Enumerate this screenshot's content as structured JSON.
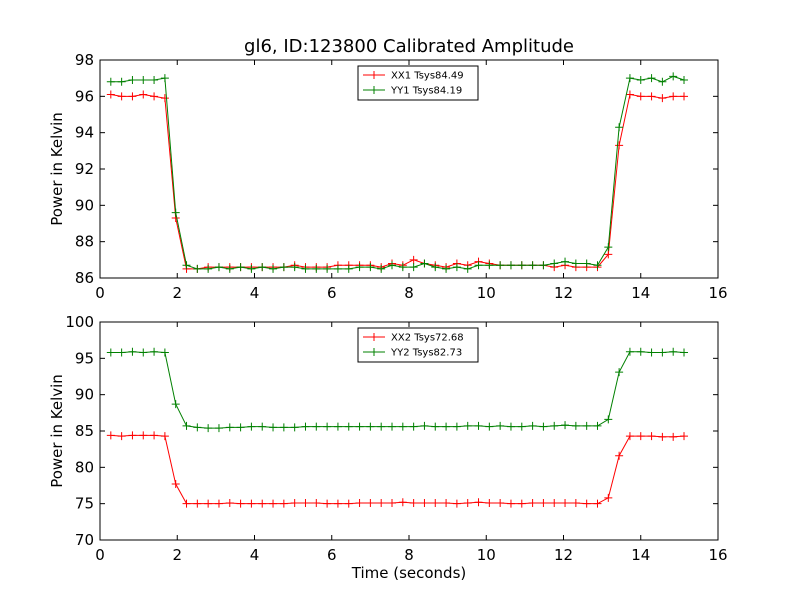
{
  "title": "gl6, ID:123800 Calibrated Amplitude",
  "chart_data": [
    {
      "type": "line",
      "title": "gl6, ID:123800 Calibrated Amplitude",
      "xlabel": "",
      "ylabel": "Power in Kelvin",
      "xlim": [
        0,
        16
      ],
      "ylim": [
        86,
        98
      ],
      "xticks": [
        0,
        2,
        4,
        6,
        8,
        10,
        12,
        14,
        16
      ],
      "yticks": [
        86,
        88,
        90,
        92,
        94,
        96,
        98
      ],
      "grid": false,
      "legend": "top-center",
      "x": [
        0.28,
        0.56,
        0.84,
        1.12,
        1.4,
        1.68,
        1.96,
        2.24,
        2.52,
        2.8,
        3.08,
        3.36,
        3.64,
        3.92,
        4.2,
        4.48,
        4.76,
        5.04,
        5.32,
        5.6,
        5.88,
        6.16,
        6.44,
        6.72,
        7.0,
        7.28,
        7.56,
        7.84,
        8.12,
        8.4,
        8.68,
        8.96,
        9.24,
        9.52,
        9.8,
        10.08,
        10.36,
        10.64,
        10.92,
        11.2,
        11.48,
        11.76,
        12.04,
        12.32,
        12.6,
        12.88,
        13.16,
        13.44,
        13.72,
        14.0,
        14.28,
        14.56,
        14.84,
        15.12
      ],
      "series": [
        {
          "name": "XX1 Tsys84.49",
          "color": "#ff0000",
          "values": [
            96.1,
            96.0,
            96.0,
            96.1,
            96.0,
            95.9,
            89.3,
            86.5,
            86.5,
            86.6,
            86.6,
            86.6,
            86.6,
            86.6,
            86.6,
            86.6,
            86.6,
            86.7,
            86.6,
            86.6,
            86.6,
            86.7,
            86.7,
            86.7,
            86.7,
            86.6,
            86.8,
            86.7,
            87.0,
            86.8,
            86.7,
            86.6,
            86.8,
            86.7,
            86.9,
            86.8,
            86.7,
            86.7,
            86.7,
            86.7,
            86.7,
            86.6,
            86.7,
            86.6,
            86.6,
            86.6,
            87.3,
            93.3,
            96.1,
            96.0,
            96.0,
            95.9,
            96.0,
            96.0
          ]
        },
        {
          "name": "YY1 Tsys84.19",
          "color": "#008000",
          "values": [
            96.8,
            96.8,
            96.9,
            96.9,
            96.9,
            97.0,
            89.6,
            86.7,
            86.5,
            86.5,
            86.6,
            86.5,
            86.6,
            86.5,
            86.6,
            86.5,
            86.6,
            86.6,
            86.5,
            86.5,
            86.5,
            86.5,
            86.5,
            86.6,
            86.6,
            86.5,
            86.7,
            86.6,
            86.6,
            86.8,
            86.6,
            86.5,
            86.6,
            86.5,
            86.7,
            86.7,
            86.7,
            86.7,
            86.7,
            86.7,
            86.7,
            86.8,
            86.9,
            86.8,
            86.8,
            86.7,
            87.7,
            94.3,
            97.0,
            96.9,
            97.0,
            96.8,
            97.1,
            96.9
          ]
        }
      ]
    },
    {
      "type": "line",
      "title": "",
      "xlabel": "Time (seconds)",
      "ylabel": "Power in Kelvin",
      "xlim": [
        0,
        16
      ],
      "ylim": [
        70,
        100
      ],
      "xticks": [
        0,
        2,
        4,
        6,
        8,
        10,
        12,
        14,
        16
      ],
      "yticks": [
        70,
        75,
        80,
        85,
        90,
        95,
        100
      ],
      "grid": false,
      "legend": "top-center",
      "x": [
        0.28,
        0.56,
        0.84,
        1.12,
        1.4,
        1.68,
        1.96,
        2.24,
        2.52,
        2.8,
        3.08,
        3.36,
        3.64,
        3.92,
        4.2,
        4.48,
        4.76,
        5.04,
        5.32,
        5.6,
        5.88,
        6.16,
        6.44,
        6.72,
        7.0,
        7.28,
        7.56,
        7.84,
        8.12,
        8.4,
        8.68,
        8.96,
        9.24,
        9.52,
        9.8,
        10.08,
        10.36,
        10.64,
        10.92,
        11.2,
        11.48,
        11.76,
        12.04,
        12.32,
        12.6,
        12.88,
        13.16,
        13.44,
        13.72,
        14.0,
        14.28,
        14.56,
        14.84,
        15.12
      ],
      "series": [
        {
          "name": "XX2 Tsys72.68",
          "color": "#ff0000",
          "values": [
            84.4,
            84.3,
            84.4,
            84.4,
            84.4,
            84.3,
            77.7,
            75.0,
            75.0,
            75.0,
            75.0,
            75.1,
            75.0,
            75.0,
            75.0,
            75.0,
            75.0,
            75.1,
            75.1,
            75.1,
            75.0,
            75.0,
            75.0,
            75.1,
            75.1,
            75.1,
            75.1,
            75.2,
            75.1,
            75.1,
            75.1,
            75.1,
            75.0,
            75.1,
            75.2,
            75.1,
            75.1,
            75.0,
            75.0,
            75.1,
            75.1,
            75.1,
            75.1,
            75.1,
            75.0,
            75.0,
            75.8,
            81.6,
            84.3,
            84.3,
            84.3,
            84.2,
            84.2,
            84.3
          ]
        },
        {
          "name": "YY2 Tsys82.73",
          "color": "#008000",
          "values": [
            95.8,
            95.8,
            95.9,
            95.8,
            95.9,
            95.8,
            88.7,
            85.7,
            85.5,
            85.4,
            85.4,
            85.5,
            85.5,
            85.6,
            85.6,
            85.5,
            85.5,
            85.5,
            85.6,
            85.6,
            85.6,
            85.6,
            85.6,
            85.6,
            85.6,
            85.6,
            85.6,
            85.6,
            85.6,
            85.7,
            85.6,
            85.6,
            85.6,
            85.7,
            85.7,
            85.6,
            85.7,
            85.6,
            85.6,
            85.7,
            85.6,
            85.7,
            85.8,
            85.7,
            85.7,
            85.7,
            86.6,
            93.1,
            95.9,
            95.9,
            95.8,
            95.8,
            95.9,
            95.8
          ]
        }
      ]
    }
  ]
}
